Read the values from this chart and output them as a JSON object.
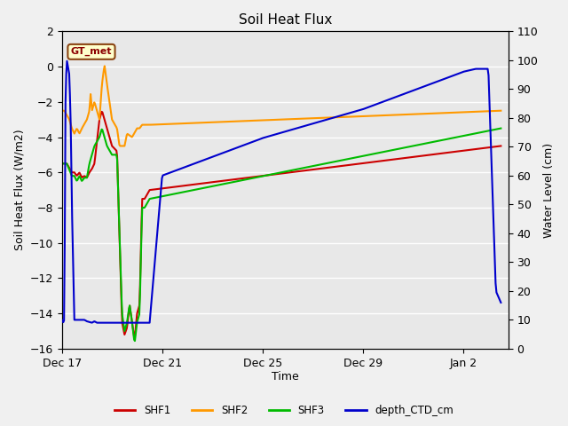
{
  "title": "Soil Heat Flux",
  "ylabel_left": "Soil Heat Flux (W/m2)",
  "ylabel_right": "Water Level (cm)",
  "xlabel": "Time",
  "ylim_left": [
    -16,
    2
  ],
  "ylim_right": [
    0,
    110
  ],
  "background_color": "#f0f0f0",
  "plot_bg_color": "#e8e8e8",
  "annotation_text": "GT_met",
  "annotation_box_facecolor": "#ffffcc",
  "annotation_box_edgecolor": "#8B4513",
  "colors": {
    "SHF1": "#cc0000",
    "SHF2": "#ff9900",
    "SHF3": "#00bb00",
    "depth_CTD_cm": "#0000cc"
  },
  "xtick_positions": [
    0,
    4,
    8,
    12,
    16
  ],
  "xtick_labels": [
    "Dec 17",
    "Dec 21",
    "Dec 25",
    "Dec 29",
    "Jan 2"
  ],
  "yticks_left": [
    -16,
    -14,
    -12,
    -10,
    -8,
    -6,
    -4,
    -2,
    0,
    2
  ],
  "yticks_right": [
    0,
    10,
    20,
    30,
    40,
    50,
    60,
    70,
    80,
    90,
    100,
    110
  ],
  "xlim": [
    0,
    17.8
  ],
  "linewidth": 1.5,
  "grid_color": "#ffffff",
  "grid_lw": 1.0,
  "legend_labels": [
    "SHF1",
    "SHF2",
    "SHF3",
    "depth_CTD_cm"
  ],
  "figsize": [
    6.4,
    4.8
  ],
  "dpi": 100
}
